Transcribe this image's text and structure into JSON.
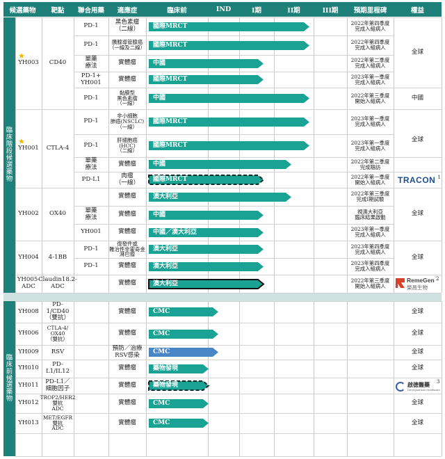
{
  "header": {
    "candidate": "候選藥物",
    "target": "靶點",
    "combo": "聯合用藥",
    "indication": "適應症",
    "preclinical": "臨床前",
    "ind": "IND",
    "phase1": "I期",
    "phase2": "II期",
    "phase3": "III期",
    "milestone": "預期里程碑",
    "rights": "權益"
  },
  "sections": {
    "clinical": "臨床階段候選藥物",
    "preclinical": "臨床前候選藥物"
  },
  "colors": {
    "teal": "#1e8079",
    "teal_light": "#1aa394",
    "blue": "#4a86c5"
  },
  "drugs": [
    {
      "name": "YH003",
      "target": "CD40",
      "star": true,
      "rights": "全球"
    },
    {
      "name": "YH001",
      "target": "CTLA-4",
      "star": true,
      "rights": "全球"
    },
    {
      "name": "YH002",
      "target": "OX40",
      "rights": "全球"
    },
    {
      "name": "YH004",
      "target": "4-1BB",
      "rights": "全球"
    },
    {
      "name": "YH005-ADC",
      "target": "Claudin18.2-ADC"
    },
    {
      "name": "YH008",
      "target": "PD-1/CD40\n（雙抗）",
      "rights": "全球"
    },
    {
      "name": "YH006",
      "target": "CTLA-4/\nOX40\n（雙抗）",
      "rights": "全球"
    },
    {
      "name": "YH009",
      "target": "RSV",
      "rights": "全球"
    },
    {
      "name": "YH010",
      "target": "PD-L1/IL12",
      "rights": "全球"
    },
    {
      "name": "YH011",
      "target": "PD-L1／\n細胞因子"
    },
    {
      "name": "YH012",
      "target": "TROP2/HER2\n雙抗\nADC",
      "rights": "全球"
    },
    {
      "name": "YH013",
      "target": "MET/EGFR\n雙抗\nADC",
      "rights": "全球"
    }
  ],
  "rights_extra": {
    "yh003_china": "中國"
  },
  "rows": [
    {
      "combo": "PD-1",
      "indication": "黑色素瘤\n（二線）",
      "bar": "國際MRCT",
      "progress": 0.81,
      "style": "solid",
      "milestone": "2022年第四季度\n完成入組病人"
    },
    {
      "combo": "PD-1",
      "indication": "胰腺導管腺癌\n（一線及二線）",
      "bar": "國際MRCT",
      "progress": 0.81,
      "style": "solid",
      "milestone": "2022年第四季度\n完成入組病人"
    },
    {
      "combo": "單藥\n療法",
      "indication": "實體瘤",
      "bar": "中國",
      "progress": 0.58,
      "style": "solid",
      "milestone": "2022年第二季度\n完成入組病人"
    },
    {
      "combo": "PD-1+\nYH001",
      "indication": "實體瘤",
      "bar": "國際MRCT",
      "progress": 0.58,
      "style": "solid",
      "milestone": "2023年第一季度\n完成入組病人"
    },
    {
      "combo": "PD-1",
      "indication": "黏膜型\n黑色素瘤\n（一線）",
      "bar": "中國",
      "progress": 0.81,
      "style": "solid",
      "milestone": "2022年第三季度\n開始入組病人"
    },
    {
      "combo": "PD-1",
      "indication": "非小細胞\n肺癌(NSCLC)\n（一線）",
      "bar": "國際MRCT",
      "progress": 0.81,
      "style": "solid",
      "milestone": "2023年第一季度\n完成入組病人"
    },
    {
      "combo": "PD-1",
      "indication": "肝細胞癌\n(HCC)\n（二線）",
      "bar": "國際MRCT",
      "progress": 0.81,
      "style": "solid",
      "milestone": "2023年第一季度\n完成入組病人"
    },
    {
      "combo": "單藥\n療法",
      "indication": "實體瘤",
      "bar": "中國",
      "progress": 0.72,
      "style": "solid",
      "milestone": "2022年第二季度\n完成隨訪"
    },
    {
      "combo": "PD-L1",
      "indication": "肉瘤\n（一線）",
      "bar": "國際MRCT",
      "progress": 0.58,
      "style": "dashed",
      "milestone": "2022年第一季度\n開始入組病人"
    },
    {
      "combo": "",
      "indication": "實體瘤",
      "bar": "澳大利亞",
      "progress": 0.72,
      "style": "solid",
      "milestone": "2022年第三季度\n完成I期試驗"
    },
    {
      "combo": "單藥\n療法",
      "indication": "實體瘤",
      "bar": "中國",
      "progress": 0.58,
      "style": "solid",
      "milestone": "視澳大利亞\n臨床結果啟動"
    },
    {
      "combo": "YH001",
      "indication": "實體瘤",
      "bar": "中國／澳大利亞",
      "progress": 0.58,
      "style": "solid",
      "milestone": "2023年第一季度\n完成入組病人"
    },
    {
      "combo": "PD-1",
      "indication": "復發件或\n難治性非霍奇金\n淋巴瘤",
      "bar": "澳大利亞",
      "progress": 0.58,
      "style": "solid",
      "milestone": "2023年第四季度\n完成入組病人"
    },
    {
      "combo": "PD-1",
      "indication": "實體瘤",
      "bar": "澳大利亞",
      "progress": 0.58,
      "style": "solid",
      "milestone": "2023年第四季度\n完成入組病人"
    },
    {
      "combo": "",
      "indication": "實體瘤",
      "bar": "澳大利亞",
      "progress": 0.58,
      "style": "black",
      "milestone": "2022年第三季度\n開始入組病人"
    },
    {
      "combo": "",
      "indication": "實體瘤",
      "bar": "CMC",
      "progress": 0.35,
      "style": "solid",
      "milestone": ""
    },
    {
      "combo": "",
      "indication": "實體瘤",
      "bar": "CMC",
      "progress": 0.35,
      "style": "solid",
      "milestone": ""
    },
    {
      "combo": "",
      "indication": "預防／治療\nRSV感染",
      "bar": "CMC",
      "progress": 0.35,
      "style": "blue",
      "milestone": ""
    },
    {
      "combo": "",
      "indication": "實體瘤",
      "bar": "藥物發現",
      "progress": 0.3,
      "style": "solid",
      "milestone": ""
    },
    {
      "combo": "",
      "indication": "實體瘤",
      "bar": "藥物發現",
      "progress": 0.3,
      "style": "dashed",
      "milestone": ""
    },
    {
      "combo": "",
      "indication": "實體瘤",
      "bar": "CMC",
      "progress": 0.3,
      "style": "solid",
      "milestone": ""
    },
    {
      "combo": "",
      "indication": "實體瘤",
      "bar": "CMC",
      "progress": 0.3,
      "style": "solid",
      "milestone": ""
    }
  ],
  "partners": {
    "tracon": {
      "logo_text": "TRACON",
      "note": "1"
    },
    "remegen": {
      "logo_text": "RemeGen",
      "logo_cn": "榮昌生物",
      "note": "2"
    },
    "genquantum": {
      "logo_text": "啟德醫藥",
      "logo_sub": "GeneQuantum Healthcare",
      "note": "3"
    }
  }
}
